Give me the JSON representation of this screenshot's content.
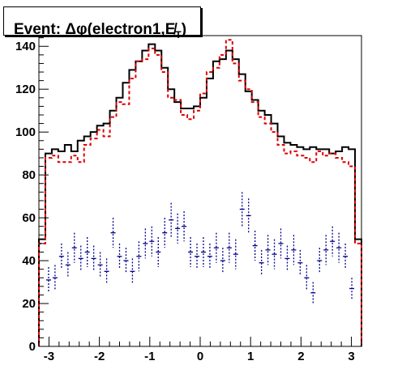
{
  "chart_data": {
    "type": "histogram",
    "title": "Event: Δφ(electron1,E̸T)",
    "title_parts": {
      "prefix": "Event: ",
      "phi": "Δφ(electron1,",
      "met": "E̸",
      "sub": "T",
      "close": ")"
    },
    "xlim": [
      -3.2,
      3.2
    ],
    "ylim": [
      0,
      145
    ],
    "xticks": [
      -3,
      -2,
      -1,
      0,
      1,
      2,
      3
    ],
    "yticks": [
      0,
      20,
      40,
      60,
      80,
      100,
      120,
      140
    ],
    "bin_edges_start": -3.2,
    "bin_width": 0.128,
    "series": [
      {
        "style": "solid",
        "color": "#000000",
        "values": [
          50,
          90,
          92,
          91,
          94,
          91,
          96,
          98,
          100,
          103,
          104,
          110,
          116,
          123,
          129,
          133,
          138,
          141,
          138,
          130,
          120,
          114,
          111,
          111,
          112,
          116,
          125,
          133,
          134,
          138,
          134,
          127,
          119,
          115,
          110,
          108,
          104,
          98,
          95,
          94,
          93,
          92,
          93,
          92,
          92,
          90,
          91,
          93,
          92,
          50
        ]
      },
      {
        "style": "dashed",
        "color": "#dd0000",
        "values": [
          48,
          88,
          89,
          86,
          86,
          89,
          86,
          94,
          97,
          101,
          98,
          107,
          114,
          113,
          125,
          133,
          134,
          139,
          136,
          128,
          116,
          115,
          108,
          106,
          110,
          118,
          128,
          130,
          136,
          143,
          132,
          124,
          120,
          114,
          107,
          104,
          100,
          94,
          90,
          91,
          89,
          88,
          86,
          91,
          89,
          90,
          88,
          86,
          84,
          48
        ]
      },
      {
        "style": "points",
        "color": "#00008b",
        "values": [
          31,
          32,
          42,
          38,
          46,
          41,
          44,
          41,
          38,
          35,
          53,
          42,
          40,
          35,
          42,
          48,
          49,
          44,
          53,
          59,
          55,
          56,
          44,
          42,
          44,
          42,
          46,
          40,
          46,
          43,
          64,
          61,
          47,
          39,
          45,
          43,
          48,
          41,
          45,
          39,
          32,
          25,
          40,
          45,
          49,
          46,
          42,
          27
        ],
        "errors": [
          6,
          6,
          6,
          6,
          7,
          6,
          7,
          6,
          6,
          6,
          7,
          6,
          6,
          6,
          7,
          7,
          7,
          7,
          7,
          8,
          7,
          7,
          7,
          6,
          7,
          6,
          7,
          6,
          7,
          7,
          8,
          8,
          7,
          6,
          7,
          7,
          7,
          6,
          7,
          6,
          6,
          5,
          6,
          7,
          7,
          7,
          6,
          5
        ],
        "x_start_bin": 1
      }
    ]
  }
}
